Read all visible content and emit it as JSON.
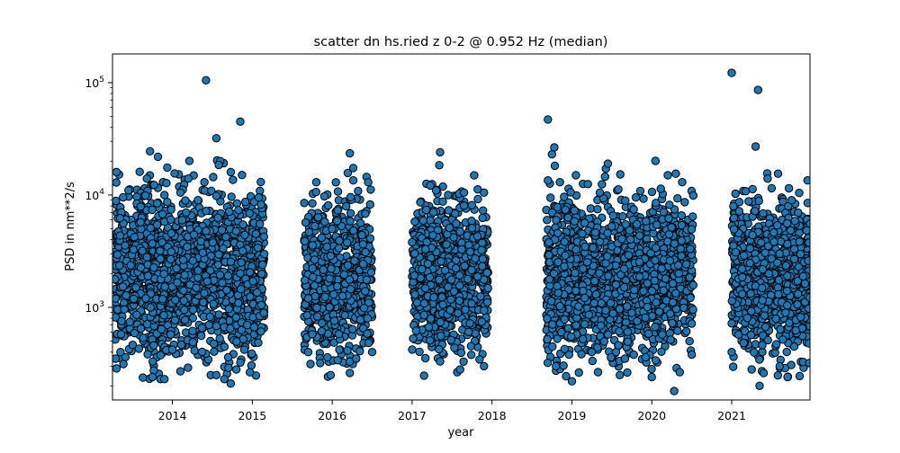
{
  "chart_data": {
    "type": "scatter",
    "title": "scatter dn hs.ried z 0-2 @ 0.952 Hz (median)",
    "xlabel": "year",
    "ylabel": "PSD in nm**2/s",
    "y_scale": "log",
    "xlim": [
      2013.25,
      2021.98
    ],
    "ylim": [
      150,
      180000
    ],
    "grid": false,
    "legend": "none",
    "marker_color": "#1f77b4",
    "marker_edge_color": "#000000",
    "x_ticks": [
      {
        "value": 2014,
        "label": "2014"
      },
      {
        "value": 2015,
        "label": "2015"
      },
      {
        "value": 2016,
        "label": "2016"
      },
      {
        "value": 2017,
        "label": "2017"
      },
      {
        "value": 2018,
        "label": "2018"
      },
      {
        "value": 2019,
        "label": "2019"
      },
      {
        "value": 2020,
        "label": "2020"
      },
      {
        "value": 2021,
        "label": "2021"
      }
    ],
    "y_ticks": [
      {
        "value": 1000,
        "base": "10",
        "exp": "3"
      },
      {
        "value": 10000,
        "base": "10",
        "exp": "4"
      },
      {
        "value": 100000,
        "base": "10",
        "exp": "5"
      }
    ],
    "data_segments": [
      {
        "x_start": 2013.28,
        "x_end": 2015.15,
        "typical_low": 500,
        "typical_high": 8000
      },
      {
        "x_start": 2015.65,
        "x_end": 2016.5,
        "typical_low": 500,
        "typical_high": 7000
      },
      {
        "x_start": 2017.0,
        "x_end": 2017.95,
        "typical_low": 550,
        "typical_high": 7000
      },
      {
        "x_start": 2018.68,
        "x_end": 2020.52,
        "typical_low": 500,
        "typical_high": 7000
      },
      {
        "x_start": 2021.0,
        "x_end": 2021.98,
        "typical_low": 500,
        "typical_high": 7000
      }
    ],
    "points": [
      [
        2014.42,
        105000
      ],
      [
        2014.55,
        32000
      ],
      [
        2014.6,
        20000
      ],
      [
        2014.58,
        18500
      ],
      [
        2014.85,
        45000
      ],
      [
        2014.73,
        16000
      ],
      [
        2013.72,
        24500
      ],
      [
        2013.3,
        16000
      ],
      [
        2014.2,
        14000
      ],
      [
        2014.4,
        13000
      ],
      [
        2013.68,
        14000
      ],
      [
        2014.32,
        9000
      ],
      [
        2013.45,
        11000
      ],
      [
        2014.1,
        10500
      ],
      [
        2013.9,
        10000
      ],
      [
        2015.08,
        9500
      ],
      [
        2013.75,
        240
      ],
      [
        2013.85,
        230
      ],
      [
        2013.9,
        230
      ],
      [
        2014.1,
        270
      ],
      [
        2014.48,
        250
      ],
      [
        2014.55,
        250
      ],
      [
        2014.65,
        230
      ],
      [
        2014.73,
        210
      ],
      [
        2014.8,
        280
      ],
      [
        2013.35,
        400
      ],
      [
        2014.0,
        420
      ],
      [
        2014.9,
        420
      ],
      [
        2016.22,
        23500
      ],
      [
        2015.8,
        13000
      ],
      [
        2016.43,
        14500
      ],
      [
        2016.45,
        13000
      ],
      [
        2015.98,
        250
      ],
      [
        2016.22,
        330
      ],
      [
        2016.3,
        350
      ],
      [
        2015.85,
        320
      ],
      [
        2015.7,
        400
      ],
      [
        2016.5,
        400
      ],
      [
        2015.65,
        8500
      ],
      [
        2016.0,
        5000
      ],
      [
        2017.35,
        24000
      ],
      [
        2017.3,
        11000
      ],
      [
        2017.45,
        10000
      ],
      [
        2017.65,
        10500
      ],
      [
        2017.9,
        10500
      ],
      [
        2017.6,
        280
      ],
      [
        2017.9,
        300
      ],
      [
        2017.35,
        330
      ],
      [
        2017.05,
        620
      ],
      [
        2017.0,
        3800
      ],
      [
        2018.7,
        47000
      ],
      [
        2018.78,
        26500
      ],
      [
        2018.75,
        23000
      ],
      [
        2018.7,
        13500
      ],
      [
        2018.85,
        13000
      ],
      [
        2019.05,
        15000
      ],
      [
        2019.45,
        19000
      ],
      [
        2019.2,
        12500
      ],
      [
        2019.35,
        10500
      ],
      [
        2019.8,
        9500
      ],
      [
        2020.2,
        15000
      ],
      [
        2020.3,
        15500
      ],
      [
        2020.38,
        13000
      ],
      [
        2020.05,
        8500
      ],
      [
        2019.0,
        220
      ],
      [
        2020.28,
        180
      ],
      [
        2020.0,
        240
      ],
      [
        2020.35,
        265
      ],
      [
        2019.6,
        250
      ],
      [
        2018.8,
        300
      ],
      [
        2019.25,
        400
      ],
      [
        2020.5,
        380
      ],
      [
        2021.0,
        122000
      ],
      [
        2021.33,
        86000
      ],
      [
        2021.3,
        27000
      ],
      [
        2021.45,
        14000
      ],
      [
        2021.58,
        15500
      ],
      [
        2021.95,
        13500
      ],
      [
        2021.5,
        11500
      ],
      [
        2021.75,
        9000
      ],
      [
        2021.7,
        240
      ],
      [
        2021.85,
        245
      ],
      [
        2021.4,
        260
      ],
      [
        2021.25,
        280
      ],
      [
        2021.6,
        300
      ],
      [
        2021.0,
        400
      ],
      [
        2021.97,
        320
      ]
    ]
  }
}
